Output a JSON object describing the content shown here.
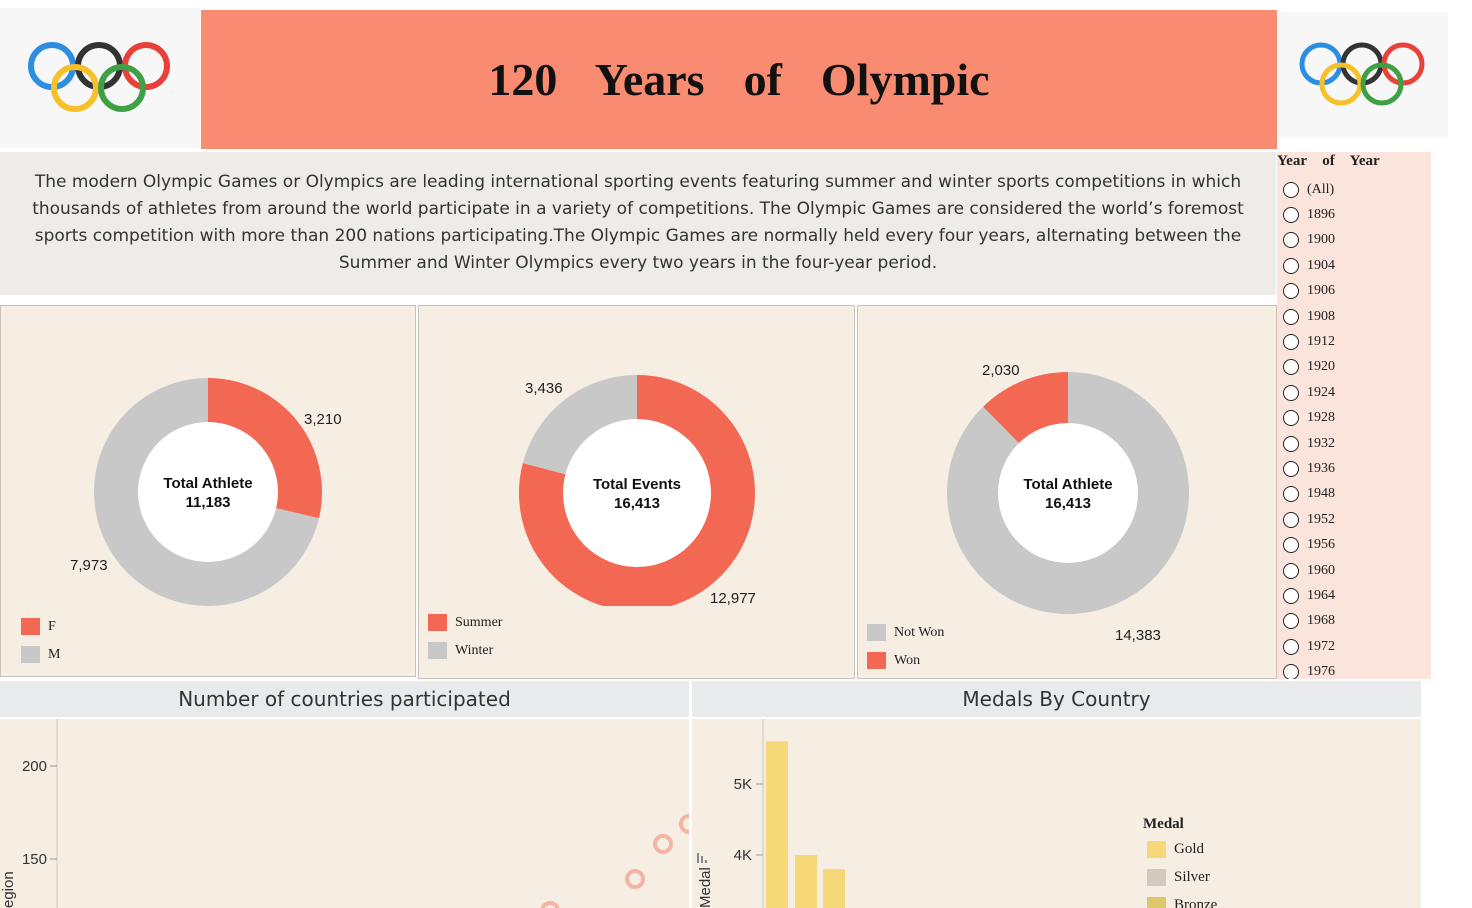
{
  "header": {
    "title": "120  Years  of  Olympic",
    "logo_left": "olympic-rings",
    "logo_right": "olympic-rings"
  },
  "description": "The modern Olympic Games or Olympics are leading international sporting events featuring summer and winter sports competitions in which thousands of athletes from around the world participate in a variety of competitions. The Olympic Games are considered the world’s foremost sports competition with more than 200 nations participating.The Olympic Games are normally held every four years, alternating between the Summer and Winter Olympics every two years in the four-year period.",
  "colors": {
    "accent": "#f26852",
    "neutral": "#c8c8c8",
    "banner": "#f98b70"
  },
  "donut_gender": {
    "center_label": "Total Athlete",
    "center_value": "11,183",
    "slices": [
      {
        "label": "F",
        "value": 3210,
        "display": "3,210",
        "color": "#f26852"
      },
      {
        "label": "M",
        "value": 7973,
        "display": "7,973",
        "color": "#c8c8c8"
      }
    ]
  },
  "donut_season": {
    "center_label": "Total Events",
    "center_value": "16,413",
    "slices": [
      {
        "label": "Summer",
        "value": 12977,
        "display": "12,977",
        "color": "#f26852"
      },
      {
        "label": "Winter",
        "value": 3436,
        "display": "3,436",
        "color": "#c8c8c8"
      }
    ]
  },
  "donut_medal": {
    "center_label": "Total Athlete",
    "center_value": "16,413",
    "slices": [
      {
        "label": "Won",
        "value": 2030,
        "display": "2,030",
        "color": "#f26852"
      },
      {
        "label": "Not Won",
        "value": 14383,
        "display": "14,383",
        "color": "#c8c8c8"
      }
    ],
    "legend": [
      "Not Won",
      "Won"
    ]
  },
  "year_filter": {
    "title": "Year  of  Year",
    "options": [
      "(All)",
      "1896",
      "1900",
      "1904",
      "1906",
      "1908",
      "1912",
      "1920",
      "1924",
      "1928",
      "1932",
      "1936",
      "1948",
      "1952",
      "1956",
      "1960",
      "1964",
      "1968",
      "1972",
      "1976"
    ]
  },
  "countries_chart": {
    "title": "Number of countries participated",
    "y_label": "egion",
    "y_ticks": [
      "200",
      "150"
    ],
    "chart_data": {
      "type": "scatter",
      "title": "Number of countries participated",
      "ylabel": "Region",
      "y_ticks": [
        200,
        150
      ],
      "visible_points_y": [
        130,
        142,
        152,
        158
      ]
    }
  },
  "medals_chart": {
    "title": "Medals By Country",
    "y_label": "Medal",
    "y_ticks": [
      "5K",
      "4K"
    ],
    "legend_title": "Medal",
    "legend": [
      {
        "label": "Gold",
        "color": "#f7d878"
      },
      {
        "label": "Silver",
        "color": "#d3c9c0"
      },
      {
        "label": "Bronze",
        "color": "#dfc86a"
      }
    ]
  },
  "chart_data": [
    {
      "type": "pie",
      "title": "Total Athlete",
      "categories": [
        "F",
        "M"
      ],
      "values": [
        3210,
        7973
      ]
    },
    {
      "type": "pie",
      "title": "Total Events",
      "categories": [
        "Summer",
        "Winter"
      ],
      "values": [
        12977,
        3436
      ]
    },
    {
      "type": "pie",
      "title": "Total Athlete",
      "categories": [
        "Won",
        "Not Won"
      ],
      "values": [
        2030,
        14383
      ]
    },
    {
      "type": "scatter",
      "title": "Number of countries participated",
      "ylabel": "Region",
      "ylim": [
        100,
        220
      ],
      "y": [
        130,
        142,
        152,
        158
      ]
    },
    {
      "type": "bar",
      "title": "Medals By Country",
      "ylabel": "Medal",
      "ylim": [
        0,
        5800
      ],
      "series": [
        {
          "name": "Gold",
          "values": [
            5600,
            4000,
            3800
          ]
        }
      ]
    }
  ]
}
